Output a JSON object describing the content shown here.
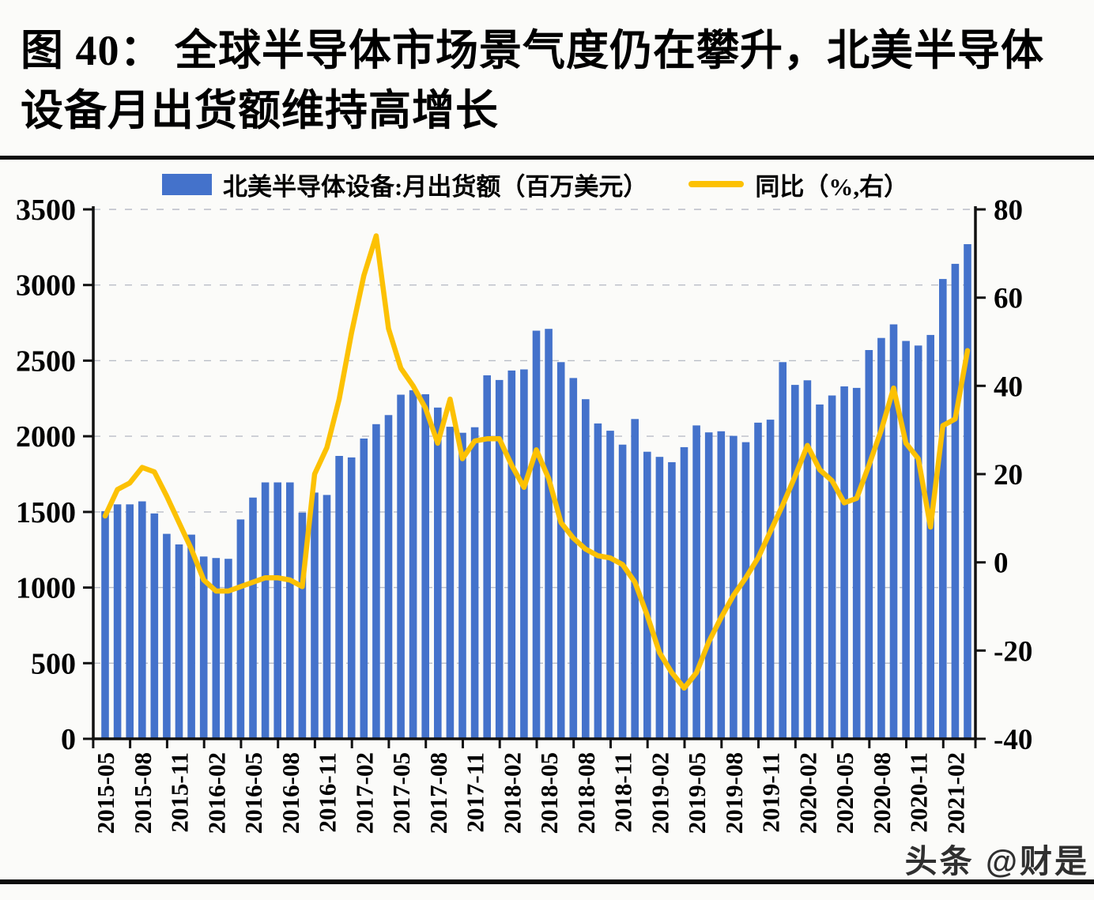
{
  "title": {
    "line1": "图 40：  全球半导体市场景气度仍在攀升，北美半导体",
    "line2": "设备月出货额维持高增长"
  },
  "legend": {
    "bar_series_label": "北美半导体设备:月出货额（百万美元）",
    "line_series_label": "同比（%,右）"
  },
  "watermark": "头条 @财是",
  "colors": {
    "bar": "#4472cb",
    "line": "#fcc103",
    "grid": "#b9bdc7",
    "axis": "#111111",
    "background": "#fbfbf9"
  },
  "chart_data": {
    "type": "bar",
    "title": "",
    "xlabel": "",
    "ylabel_left": "百万美元",
    "ylabel_right": "%",
    "grid": "dashed horizontal",
    "legend_position": "top",
    "x": [
      "2015-05",
      "2015-06",
      "2015-07",
      "2015-08",
      "2015-09",
      "2015-10",
      "2015-11",
      "2015-12",
      "2016-01",
      "2016-02",
      "2016-03",
      "2016-04",
      "2016-05",
      "2016-06",
      "2016-07",
      "2016-08",
      "2016-09",
      "2016-10",
      "2016-11",
      "2016-12",
      "2017-01",
      "2017-02",
      "2017-03",
      "2017-04",
      "2017-05",
      "2017-06",
      "2017-07",
      "2017-08",
      "2017-09",
      "2017-10",
      "2017-11",
      "2017-12",
      "2018-01",
      "2018-02",
      "2018-03",
      "2018-04",
      "2018-05",
      "2018-06",
      "2018-07",
      "2018-08",
      "2018-09",
      "2018-10",
      "2018-11",
      "2018-12",
      "2019-01",
      "2019-02",
      "2019-03",
      "2019-04",
      "2019-05",
      "2019-06",
      "2019-07",
      "2019-08",
      "2019-09",
      "2019-10",
      "2019-11",
      "2019-12",
      "2020-01",
      "2020-02",
      "2020-03",
      "2020-04",
      "2020-05",
      "2020-06",
      "2020-07",
      "2020-08",
      "2020-09",
      "2020-10",
      "2020-11",
      "2020-12",
      "2021-01",
      "2021-02",
      "2021-03"
    ],
    "series": [
      {
        "name": "北美半导体设备:月出货额（百万美元）",
        "type": "bar",
        "axis": "left",
        "values": [
          1505,
          1550,
          1550,
          1570,
          1490,
          1355,
          1285,
          1350,
          1205,
          1195,
          1190,
          1450,
          1595,
          1695,
          1695,
          1695,
          1495,
          1628,
          1612,
          1870,
          1860,
          1985,
          2080,
          2140,
          2275,
          2305,
          2278,
          2190,
          2063,
          2023,
          2060,
          2403,
          2372,
          2435,
          2442,
          2698,
          2710,
          2490,
          2385,
          2245,
          2085,
          2037,
          1945,
          2114,
          1898,
          1864,
          1829,
          1928,
          2072,
          2026,
          2033,
          2003,
          1961,
          2090,
          2110,
          2490,
          2340,
          2370,
          2210,
          2270,
          2330,
          2320,
          2570,
          2650,
          2740,
          2630,
          2600,
          2670,
          3040,
          3140,
          3270
        ]
      },
      {
        "name": "同比（%,右）",
        "type": "line",
        "axis": "right",
        "values": [
          10.5,
          16.5,
          18,
          21.5,
          20.5,
          15,
          9,
          3,
          -4,
          -6.5,
          -6.5,
          -5.5,
          -4.5,
          -3.5,
          -3.5,
          -4,
          -5.5,
          20,
          26,
          37,
          52,
          65,
          74,
          53,
          44,
          40,
          35,
          27,
          37,
          23.5,
          27.5,
          28,
          28,
          22,
          17,
          25.5,
          19,
          9,
          5.5,
          3,
          1.5,
          1,
          -0.5,
          -4.5,
          -12,
          -20.5,
          -25,
          -28.5,
          -25,
          -18,
          -12.5,
          -7.5,
          -3.5,
          1,
          7,
          13,
          19.5,
          26.5,
          21,
          18.5,
          13.5,
          14.5,
          22,
          30,
          39.5,
          27,
          23.5,
          8,
          31,
          32.5,
          48
        ]
      }
    ],
    "left_axis": {
      "min": 0,
      "max": 3500,
      "step": 500,
      "tick_labels": [
        "0",
        "500",
        "1000",
        "1500",
        "2000",
        "2500",
        "3000",
        "3500"
      ]
    },
    "right_axis": {
      "min": -40,
      "max": 80,
      "step": 20,
      "tick_labels": [
        "-40",
        "-20",
        "0",
        "20",
        "40",
        "60",
        "80"
      ]
    },
    "x_tick_labels": [
      "2015-05",
      "2015-08",
      "2015-11",
      "2016-02",
      "2016-05",
      "2016-08",
      "2016-11",
      "2017-02",
      "2017-05",
      "2017-08",
      "2017-11",
      "2018-02",
      "2018-05",
      "2018-08",
      "2018-11",
      "2019-02",
      "2019-05",
      "2019-08",
      "2019-11",
      "2020-02",
      "2020-05",
      "2020-08",
      "2020-11",
      "2021-02"
    ],
    "x_label_every_n_months": 3
  }
}
